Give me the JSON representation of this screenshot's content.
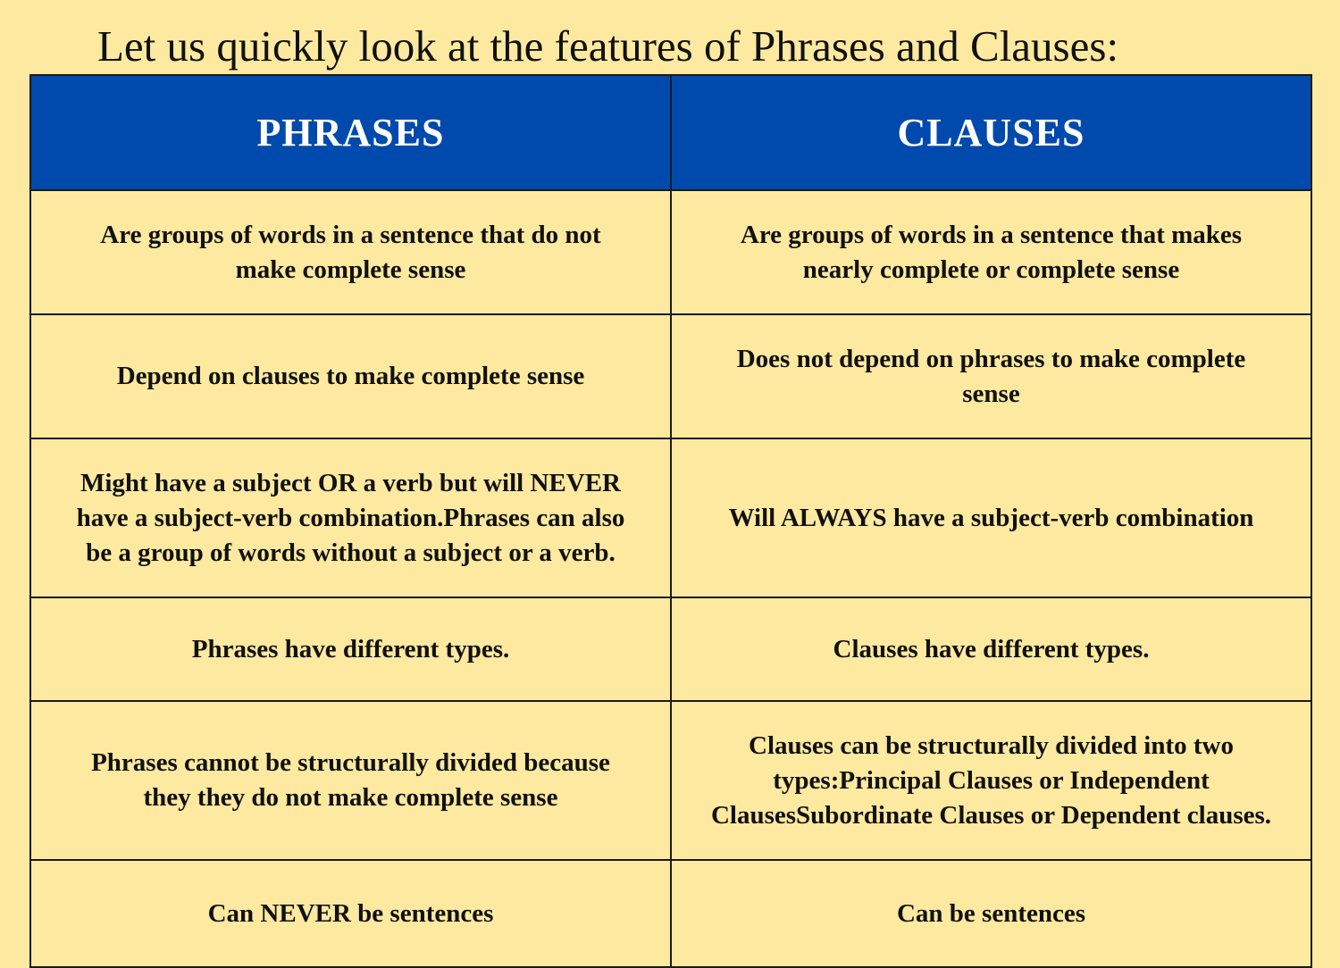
{
  "title": "Let us quickly look at the features of Phrases and Clauses:",
  "table": {
    "headers": [
      "PHRASES",
      "CLAUSES"
    ],
    "rows": [
      {
        "phrases": "Are groups of words in a sentence that do not make complete sense",
        "clauses": "Are groups of words in a sentence that makes nearly complete or complete sense"
      },
      {
        "phrases": "Depend on clauses to make complete sense",
        "clauses": "Does not depend on phrases to make complete sense"
      },
      {
        "phrases": "Might have a subject OR a verb but will NEVER have a subject-verb combination.Phrases can also be a group of words without a subject or a verb.",
        "clauses": "Will ALWAYS have a subject-verb combination"
      },
      {
        "phrases": "Phrases have different types.",
        "clauses": "Clauses have different types."
      },
      {
        "phrases": "Phrases cannot be structurally divided because they they do not make complete sense",
        "clauses": "Clauses can be structurally divided into two types:Principal Clauses or Independent ClausesSubordinate Clauses or Dependent clauses."
      },
      {
        "phrases": "Can NEVER be sentences",
        "clauses": "Can be sentences"
      }
    ]
  }
}
